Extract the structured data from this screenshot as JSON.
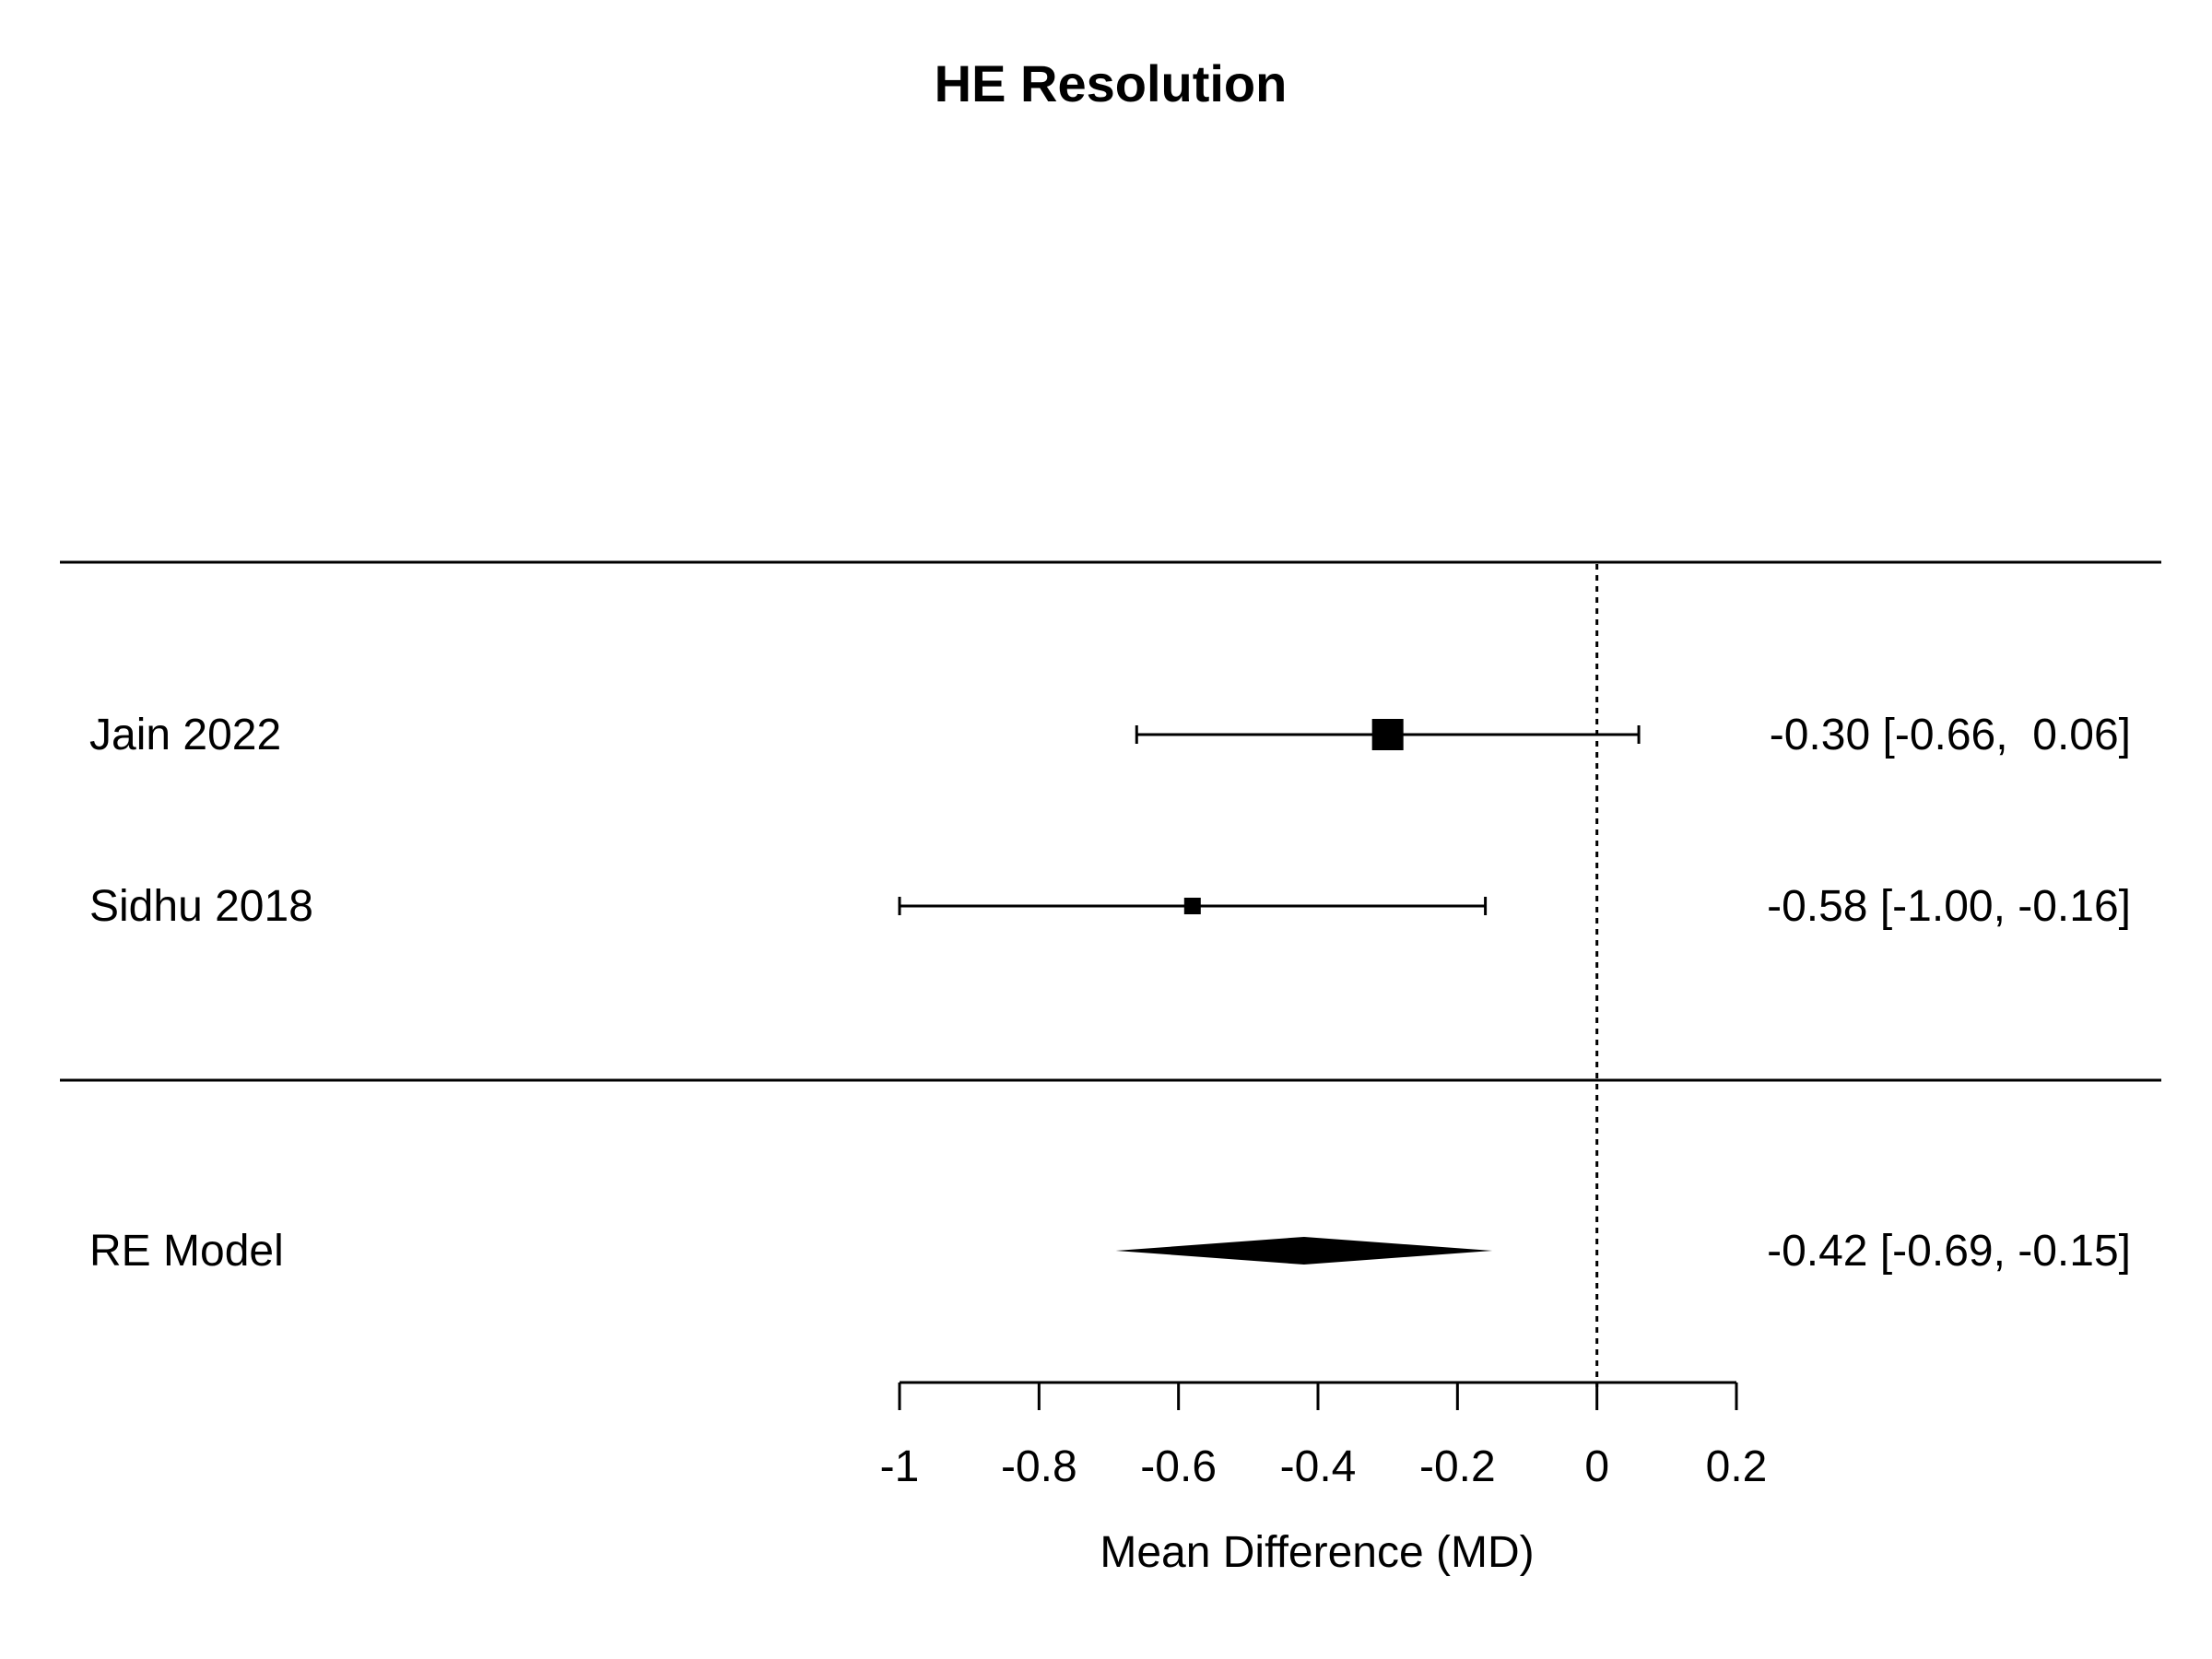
{
  "chart_data": {
    "type": "forest",
    "title": "HE Resolution",
    "xlabel": "Mean Difference (MD)",
    "xlim": [
      -1,
      0.2
    ],
    "ticks": [
      -1,
      -0.8,
      -0.6,
      -0.4,
      -0.2,
      0,
      0.2
    ],
    "tick_labels": [
      "-1",
      "-0.8",
      "-0.6",
      "-0.4",
      "-0.2",
      "0",
      "0.2"
    ],
    "reference_line": 0,
    "studies": [
      {
        "name": "Jain 2022",
        "estimate": -0.3,
        "ci_lower": -0.66,
        "ci_upper": 0.06,
        "label": "-0.30 [-0.66,  0.06]",
        "weight": 1.0
      },
      {
        "name": "Sidhu 2018",
        "estimate": -0.58,
        "ci_lower": -1.0,
        "ci_upper": -0.16,
        "label": "-0.58 [-1.00, -0.16]",
        "weight": 0.28
      }
    ],
    "summary": {
      "name": "RE Model",
      "estimate": -0.42,
      "ci_lower": -0.69,
      "ci_upper": -0.15,
      "label": "-0.42 [-0.69, -0.15]"
    }
  }
}
